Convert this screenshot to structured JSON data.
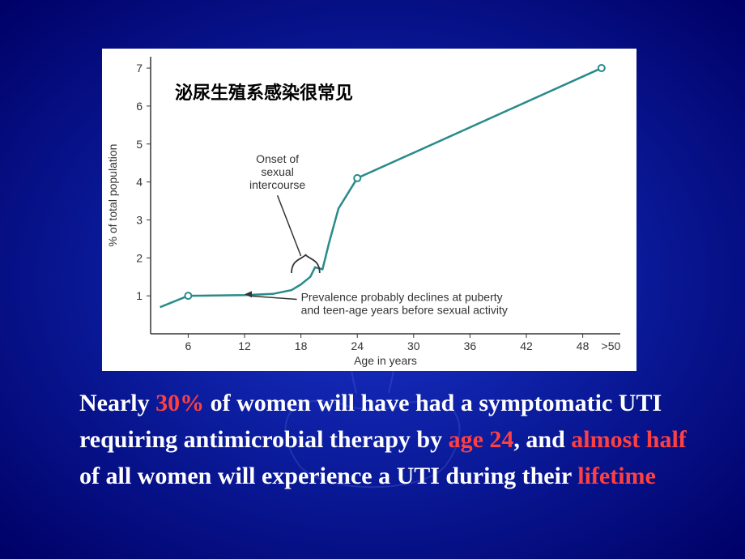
{
  "chart": {
    "type": "line",
    "title_cn": "泌尿生殖系感染很常见",
    "xlabel": "Age in years",
    "ylabel": "% of total population",
    "xlim": [
      2,
      52
    ],
    "ylim": [
      0,
      7.3
    ],
    "xticks": [
      6,
      12,
      18,
      24,
      30,
      36,
      42,
      48
    ],
    "xtick_extra": ">50",
    "yticks": [
      1,
      2,
      3,
      4,
      5,
      6,
      7
    ],
    "line_color": "#2a8a8a",
    "line_width": 2.5,
    "marker_color_fill": "#ffffff",
    "marker_color_stroke": "#2a8a8a",
    "marker_radius": 4,
    "background_color": "#ffffff",
    "text_color": "#343434",
    "font_family": "Arial, Helvetica, sans-serif",
    "font_size_axis": 14,
    "font_size_anno": 14,
    "font_size_title": 22,
    "data_points": [
      {
        "x": 3,
        "y": 0.7
      },
      {
        "x": 6,
        "y": 1.0,
        "marker": true
      },
      {
        "x": 12,
        "y": 1.02
      },
      {
        "x": 15,
        "y": 1.05
      },
      {
        "x": 17,
        "y": 1.15
      },
      {
        "x": 18,
        "y": 1.3
      },
      {
        "x": 19,
        "y": 1.5
      },
      {
        "x": 19.5,
        "y": 1.75
      },
      {
        "x": 20.3,
        "y": 1.7
      },
      {
        "x": 21,
        "y": 2.4
      },
      {
        "x": 22,
        "y": 3.3
      },
      {
        "x": 24,
        "y": 4.1,
        "marker": true
      },
      {
        "x": 50,
        "y": 7.0,
        "marker": true
      }
    ],
    "anno_onset_l1": "Onset of",
    "anno_onset_l2": "sexual",
    "anno_onset_l3": "intercourse",
    "anno_prev_l1": "Prevalence probably declines at puberty",
    "anno_prev_l2": "and teen-age years before sexual activity"
  },
  "caption": {
    "t1": "Nearly ",
    "h1": "30%",
    "t2": " of women will have had a symptomatic UTI requiring antimicrobial therapy by ",
    "h2": "age 24",
    "t3": ", and ",
    "h3": "almost half",
    "t4": "  of all women will experience a UTI during their ",
    "h4": "lifetime"
  }
}
